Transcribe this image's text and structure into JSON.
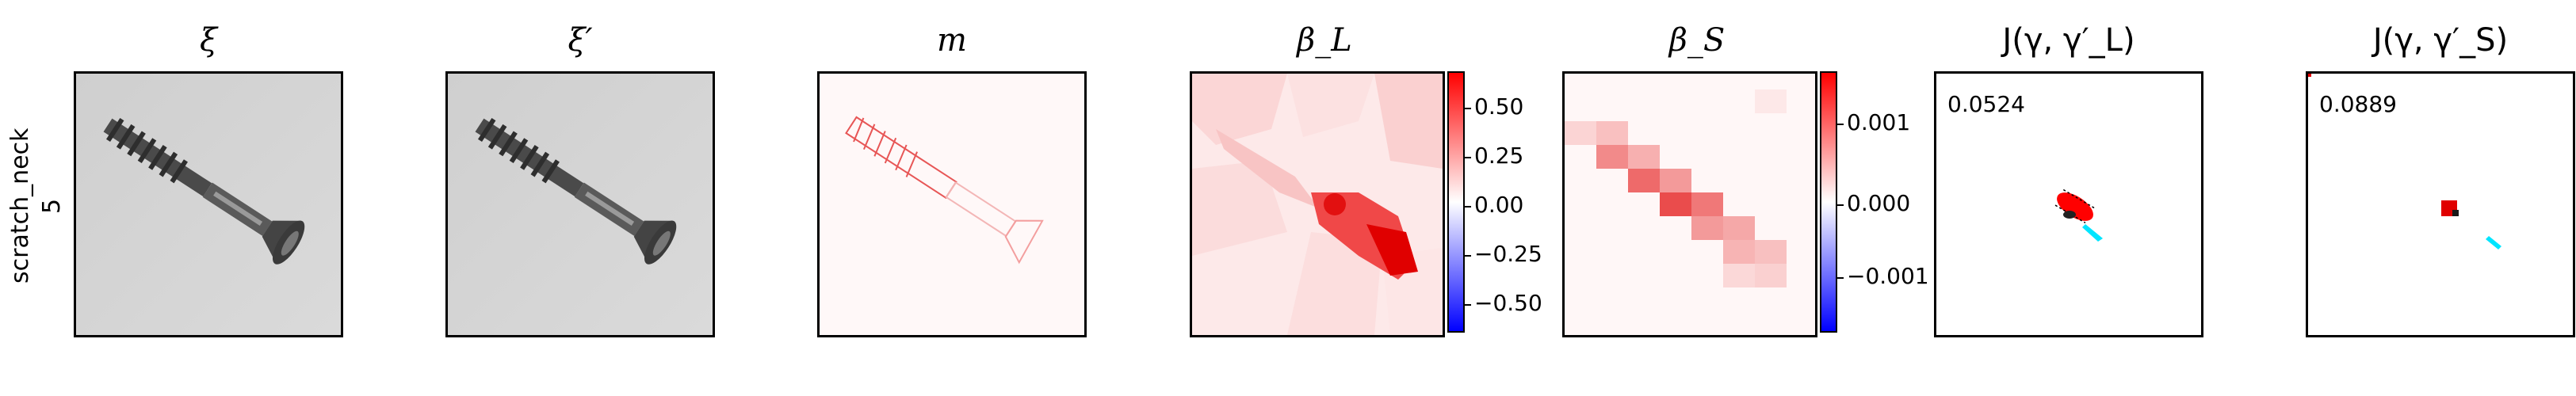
{
  "row_label": {
    "line1": "scratch_neck",
    "line2": "5"
  },
  "titles": {
    "xi": "ξ",
    "xi_prime": "ξ′",
    "m": "m",
    "beta_l": "β_L",
    "beta_s": "β_S",
    "j_l": "J(γ, γ′_L)",
    "j_s": "J(γ, γ′_S)"
  },
  "colorbar_l": {
    "ticks": [
      "0.50",
      "0.25",
      "0.00",
      "−0.25",
      "−0.50"
    ]
  },
  "colorbar_s": {
    "ticks": [
      "0.001",
      "0.000",
      "−0.001"
    ]
  },
  "scores": {
    "j_l": "0.0524",
    "j_s": "0.0889"
  },
  "colors": {
    "red": "#ff0000",
    "blue": "#0000ff",
    "cyan": "#00e5ff"
  }
}
